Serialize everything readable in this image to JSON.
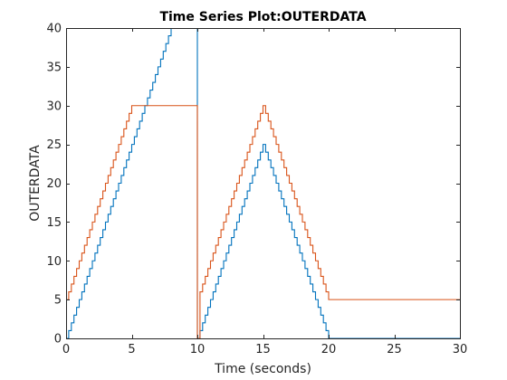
{
  "chart_data": {
    "type": "line",
    "title": "Time Series Plot:OUTERDATA",
    "xlabel": "Time (seconds)",
    "ylabel": "OUTERDATA",
    "xlim": [
      0,
      30
    ],
    "ylim": [
      0,
      40
    ],
    "xticks": [
      0,
      5,
      10,
      15,
      20,
      25,
      30
    ],
    "yticks": [
      0,
      5,
      10,
      15,
      20,
      25,
      30,
      35,
      40
    ],
    "step_interpolation": true,
    "grid": false,
    "series": [
      {
        "color": "#0072BD",
        "x": [
          0,
          0.2,
          0.4,
          0.6,
          0.8,
          1.0,
          1.2,
          1.4,
          1.6,
          1.8,
          2.0,
          2.2,
          2.4,
          2.6,
          2.8,
          3.0,
          3.2,
          3.4,
          3.6,
          3.8,
          4.0,
          4.2,
          4.4,
          4.6,
          4.8,
          5.0,
          5.2,
          5.4,
          5.6,
          5.8,
          6.0,
          6.2,
          6.4,
          6.6,
          6.8,
          7.0,
          7.2,
          7.4,
          7.6,
          7.8,
          8.0,
          10.0,
          10.2,
          10.4,
          10.6,
          10.8,
          11.0,
          11.2,
          11.4,
          11.6,
          11.8,
          12.0,
          12.2,
          12.4,
          12.6,
          12.8,
          13.0,
          13.2,
          13.4,
          13.6,
          13.8,
          14.0,
          14.2,
          14.4,
          14.6,
          14.8,
          15.0,
          15.2,
          15.4,
          15.6,
          15.8,
          16.0,
          16.2,
          16.4,
          16.6,
          16.8,
          17.0,
          17.2,
          17.4,
          17.6,
          17.8,
          18.0,
          18.2,
          18.4,
          18.6,
          18.8,
          19.0,
          19.2,
          19.4,
          19.6,
          19.8,
          20.0,
          30.0
        ],
        "y": [
          0,
          1,
          2,
          3,
          4,
          5,
          6,
          7,
          8,
          9,
          10,
          11,
          12,
          13,
          14,
          15,
          16,
          17,
          18,
          19,
          20,
          21,
          22,
          23,
          24,
          25,
          26,
          27,
          28,
          29,
          30,
          31,
          32,
          33,
          34,
          35,
          36,
          37,
          38,
          39,
          40,
          0,
          1,
          2,
          3,
          4,
          5,
          6,
          7,
          8,
          9,
          10,
          11,
          12,
          13,
          14,
          15,
          16,
          17,
          18,
          19,
          20,
          21,
          22,
          23,
          24,
          25,
          24,
          23,
          22,
          21,
          20,
          19,
          18,
          17,
          16,
          15,
          14,
          13,
          12,
          11,
          10,
          9,
          8,
          7,
          6,
          5,
          4,
          3,
          2,
          1,
          0,
          0
        ]
      },
      {
        "color": "#D95319",
        "x": [
          0,
          0.2,
          0.4,
          0.6,
          0.8,
          1.0,
          1.2,
          1.4,
          1.6,
          1.8,
          2.0,
          2.2,
          2.4,
          2.6,
          2.8,
          3.0,
          3.2,
          3.4,
          3.6,
          3.8,
          4.0,
          4.2,
          4.4,
          4.6,
          4.8,
          5.0,
          10.0,
          10.2,
          10.4,
          10.6,
          10.8,
          11.0,
          11.2,
          11.4,
          11.6,
          11.8,
          12.0,
          12.2,
          12.4,
          12.6,
          12.8,
          13.0,
          13.2,
          13.4,
          13.6,
          13.8,
          14.0,
          14.2,
          14.4,
          14.6,
          14.8,
          15.0,
          15.2,
          15.4,
          15.6,
          15.8,
          16.0,
          16.2,
          16.4,
          16.6,
          16.8,
          17.0,
          17.2,
          17.4,
          17.6,
          17.8,
          18.0,
          18.2,
          18.4,
          18.6,
          18.8,
          19.0,
          19.2,
          19.4,
          19.6,
          19.8,
          20.0,
          30.0
        ],
        "y": [
          5,
          6,
          7,
          8,
          9,
          10,
          11,
          12,
          13,
          14,
          15,
          16,
          17,
          18,
          19,
          20,
          21,
          22,
          23,
          24,
          25,
          26,
          27,
          28,
          29,
          30,
          0,
          6,
          7,
          8,
          9,
          10,
          11,
          12,
          13,
          14,
          15,
          16,
          17,
          18,
          19,
          20,
          21,
          22,
          23,
          24,
          25,
          26,
          27,
          28,
          29,
          30,
          29,
          28,
          27,
          26,
          25,
          24,
          23,
          22,
          21,
          20,
          19,
          18,
          17,
          16,
          15,
          14,
          13,
          12,
          11,
          10,
          9,
          8,
          7,
          6,
          5,
          5
        ]
      }
    ]
  }
}
